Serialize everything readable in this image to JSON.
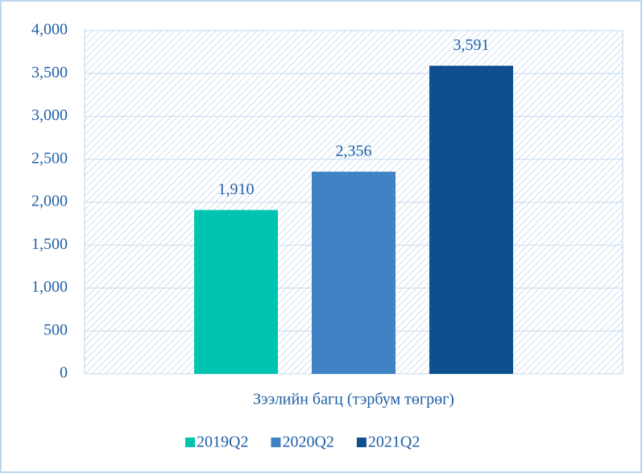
{
  "chart_data": {
    "type": "bar",
    "categories": [
      "Зээлийн багц (тэрбум төгрөг)"
    ],
    "series": [
      {
        "name": "2019Q2",
        "color": "#00c4b0",
        "values": [
          1910
        ],
        "value_labels": [
          "1,910"
        ]
      },
      {
        "name": "2020Q2",
        "color": "#4083c4",
        "values": [
          2356
        ],
        "value_labels": [
          "2,356"
        ]
      },
      {
        "name": "2021Q2",
        "color": "#0e4f8f",
        "values": [
          3591
        ],
        "value_labels": [
          "3,591"
        ]
      }
    ],
    "ylim": [
      0,
      4000
    ],
    "yticks": [
      0,
      500,
      {
        "value": 1000,
        "label": "1,000"
      },
      {
        "value": 1500,
        "label": "1,500"
      },
      {
        "value": 2000,
        "label": "2,000"
      },
      {
        "value": 2500,
        "label": "2,500"
      },
      {
        "value": 3000,
        "label": "3,000"
      },
      {
        "value": 3500,
        "label": "3,500"
      },
      {
        "value": 4000,
        "label": "4,000"
      }
    ],
    "grid": true,
    "legend": "bottom"
  }
}
